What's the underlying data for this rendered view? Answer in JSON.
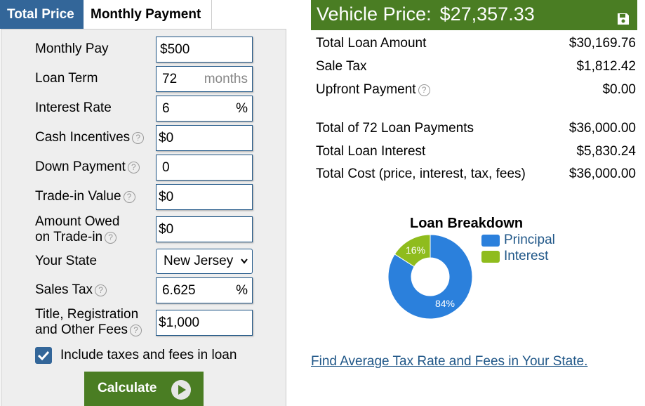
{
  "tabs": {
    "total_price": "Total Price",
    "monthly_payment": "Monthly Payment"
  },
  "form": {
    "monthly_pay": {
      "label": "Monthly Pay",
      "value": "$500"
    },
    "loan_term": {
      "label": "Loan Term",
      "value": "72",
      "unit": "months"
    },
    "interest_rate": {
      "label": "Interest Rate",
      "value": "6",
      "unit": "%"
    },
    "cash_incentives": {
      "label": "Cash Incentives",
      "value": "$0"
    },
    "down_payment": {
      "label": "Down Payment",
      "value": "0"
    },
    "trade_in_value": {
      "label": "Trade-in Value",
      "value": "$0"
    },
    "amount_owed": {
      "label_line1": "Amount Owed",
      "label_line2": "on Trade-in",
      "value": "$0"
    },
    "your_state": {
      "label": "Your State",
      "selected": "New Jersey"
    },
    "sales_tax": {
      "label": "Sales Tax",
      "value": "6.625",
      "unit": "%"
    },
    "fees": {
      "label_line1": "Title, Registration",
      "label_line2": "and Other Fees",
      "value": "$1,000"
    },
    "include_taxes": {
      "label": "Include taxes and fees in loan",
      "checked": true
    },
    "calculate_label": "Calculate",
    "help_glyph": "?"
  },
  "results": {
    "vehicle_price_label": "Vehicle Price:",
    "vehicle_price_value": "$27,357.33",
    "save_label": "save",
    "rows": [
      {
        "label": "Total Loan Amount",
        "value": "$30,169.76"
      },
      {
        "label": "Sale Tax",
        "value": "$1,812.42"
      },
      {
        "label": "Upfront Payment",
        "value": "$0.00"
      },
      {
        "label": "Total of 72 Loan Payments",
        "value": "$36,000.00"
      },
      {
        "label": "Total Loan Interest",
        "value": "$5,830.24"
      },
      {
        "label": "Total Cost (price, interest, tax, fees)",
        "value": "$36,000.00"
      }
    ]
  },
  "chart_data": {
    "type": "pie",
    "title": "Loan Breakdown",
    "categories": [
      "Principal",
      "Interest"
    ],
    "values": [
      84,
      16
    ],
    "labels": [
      "84%",
      "16%"
    ],
    "colors": [
      "#2b80dc",
      "#8fbc1d"
    ],
    "donut": true,
    "legend_position": "right"
  },
  "links": {
    "find_tax": "Find Average Tax Rate and Fees in Your State."
  },
  "colors": {
    "blue": "#336699",
    "green": "#4a7d23",
    "link": "#205788"
  }
}
